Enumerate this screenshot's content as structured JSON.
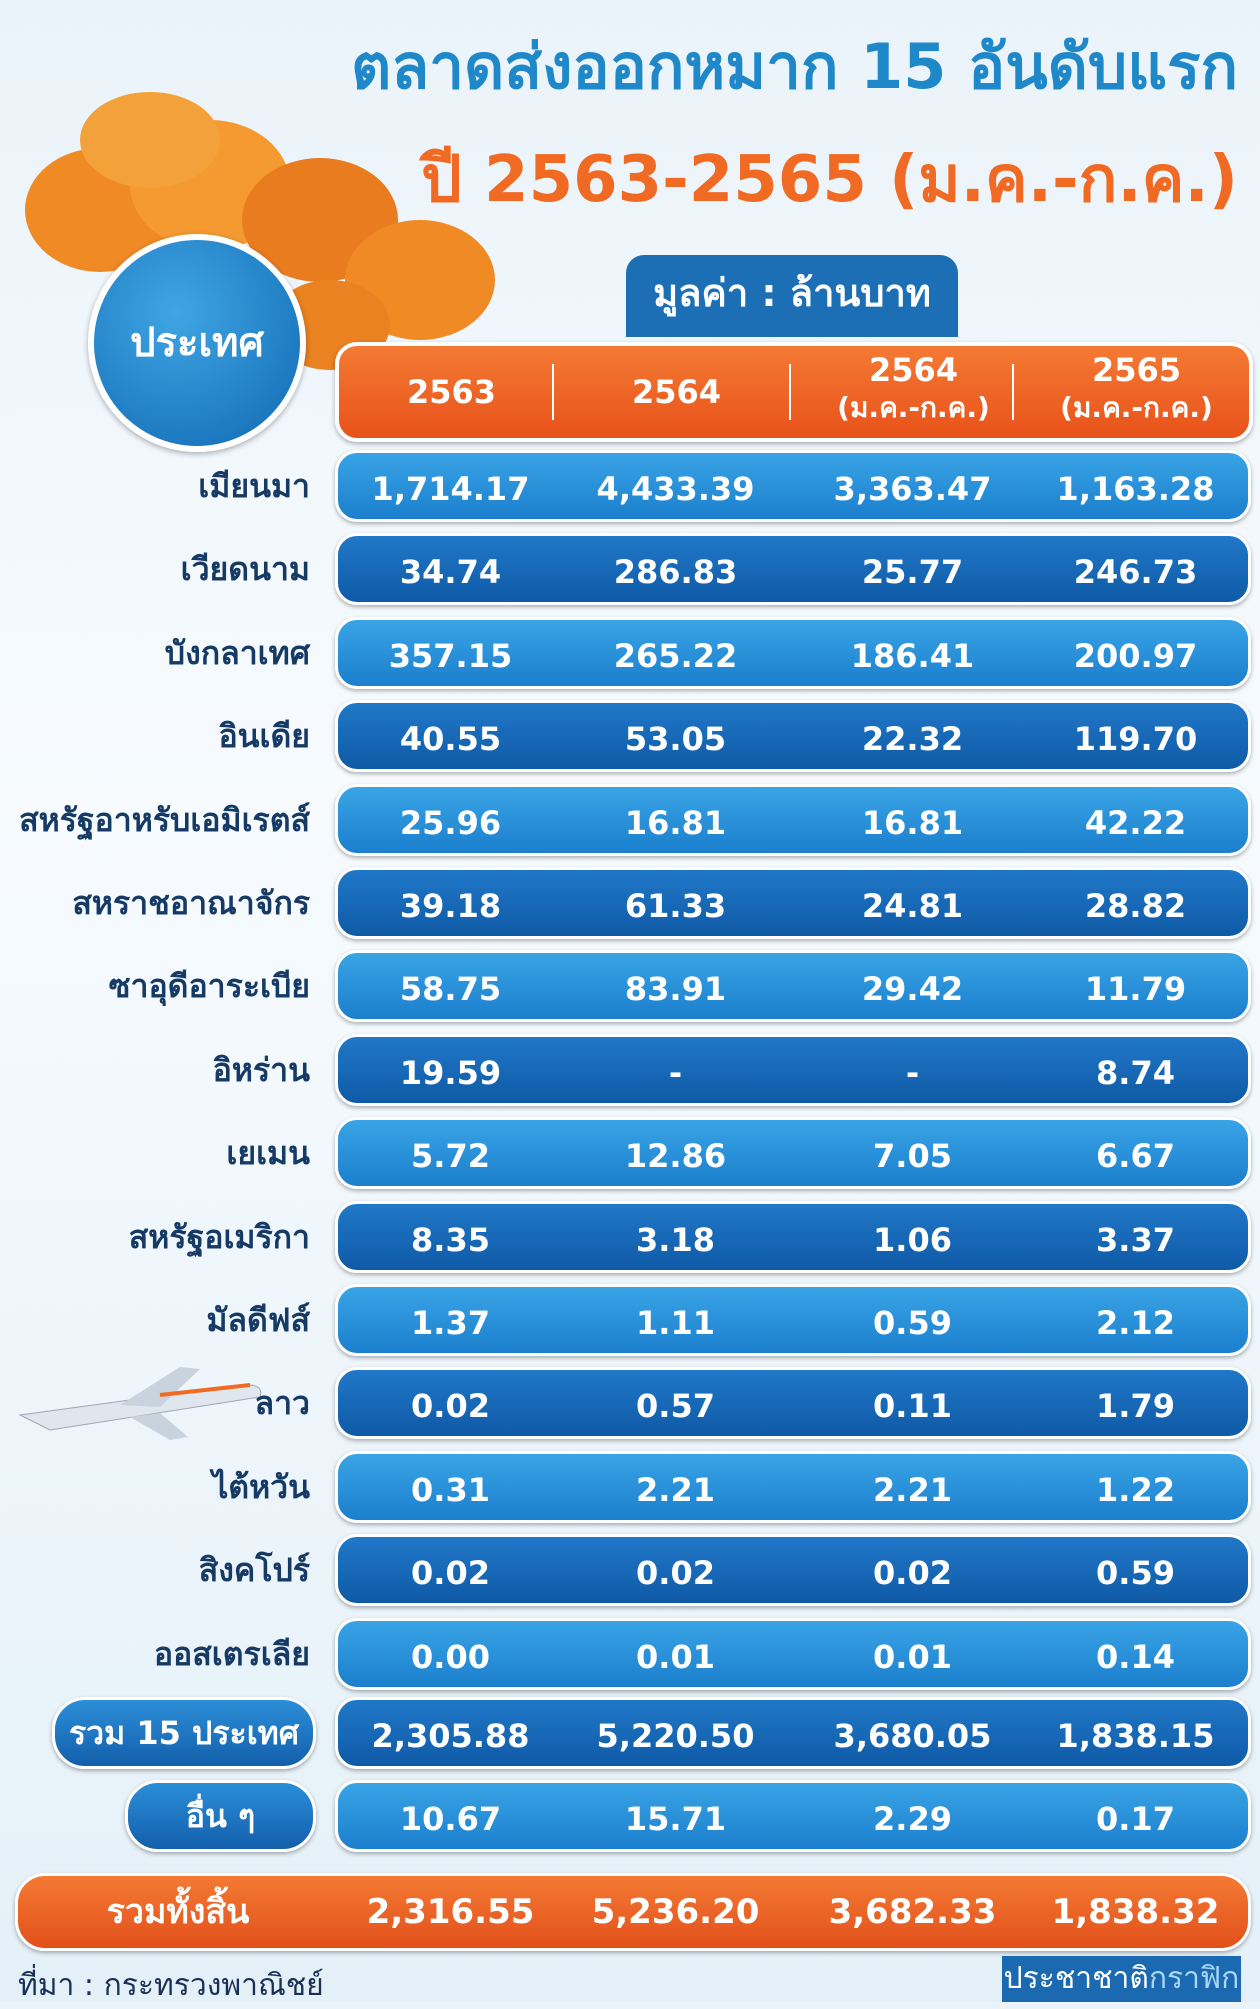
{
  "header": {
    "title": "ตลาดส่งออกหมาก 15 อันดับแรก",
    "subtitle": "ปี 2563-2565 (ม.ค.-ก.ค.)",
    "unit": "มูลค่า : ล้านบาท"
  },
  "table": {
    "corner": "ประเทศ",
    "columns": [
      {
        "label": "2563"
      },
      {
        "label": "2564"
      },
      {
        "label": "2564",
        "note": "(ม.ค.-ก.ค.)"
      },
      {
        "label": "2565",
        "note": "(ม.ค.-ก.ค.)"
      }
    ],
    "rows": [
      [
        "เมียนมา",
        "1,714.17",
        "4,433.39",
        "3,363.47",
        "1,163.28"
      ],
      [
        "เวียดนาม",
        "34.74",
        "286.83",
        "25.77",
        "246.73"
      ],
      [
        "บังกลาเทศ",
        "357.15",
        "265.22",
        "186.41",
        "200.97"
      ],
      [
        "อินเดีย",
        "40.55",
        "53.05",
        "22.32",
        "119.70"
      ],
      [
        "สหรัฐอาหรับเอมิเรตส์",
        "25.96",
        "16.81",
        "16.81",
        "42.22"
      ],
      [
        "สหราชอาณาจักร",
        "39.18",
        "61.33",
        "24.81",
        "28.82"
      ],
      [
        "ซาอุดีอาระเบีย",
        "58.75",
        "83.91",
        "29.42",
        "11.79"
      ],
      [
        "อิหร่าน",
        "19.59",
        "-",
        "-",
        "8.74"
      ],
      [
        "เยเมน",
        "5.72",
        "12.86",
        "7.05",
        "6.67"
      ],
      [
        "สหรัฐอเมริกา",
        "8.35",
        "3.18",
        "1.06",
        "3.37"
      ],
      [
        "มัลดีฟส์",
        "1.37",
        "1.11",
        "0.59",
        "2.12"
      ],
      [
        "ลาว",
        "0.02",
        "0.57",
        "0.11",
        "1.79"
      ],
      [
        "ไต้หวัน",
        "0.31",
        "2.21",
        "2.21",
        "1.22"
      ],
      [
        "สิงคโปร์",
        "0.02",
        "0.02",
        "0.02",
        "0.59"
      ],
      [
        "ออสเตรเลีย",
        "0.00",
        "0.01",
        "0.01",
        "0.14"
      ]
    ],
    "subtotal": [
      "รวม 15 ประเทศ",
      "2,305.88",
      "5,220.50",
      "3,680.05",
      "1,838.15"
    ],
    "others": [
      "อื่น ๆ",
      "10.67",
      "15.71",
      "2.29",
      "0.17"
    ],
    "total": [
      "รวมทั้งสิ้น",
      "2,316.55",
      "5,236.20",
      "3,682.33",
      "1,838.32"
    ]
  },
  "footer": {
    "source": "ที่มา : กระทรวงพาณิชย์",
    "credit": [
      "ประชาชาติ",
      "กราฟิก"
    ]
  }
}
